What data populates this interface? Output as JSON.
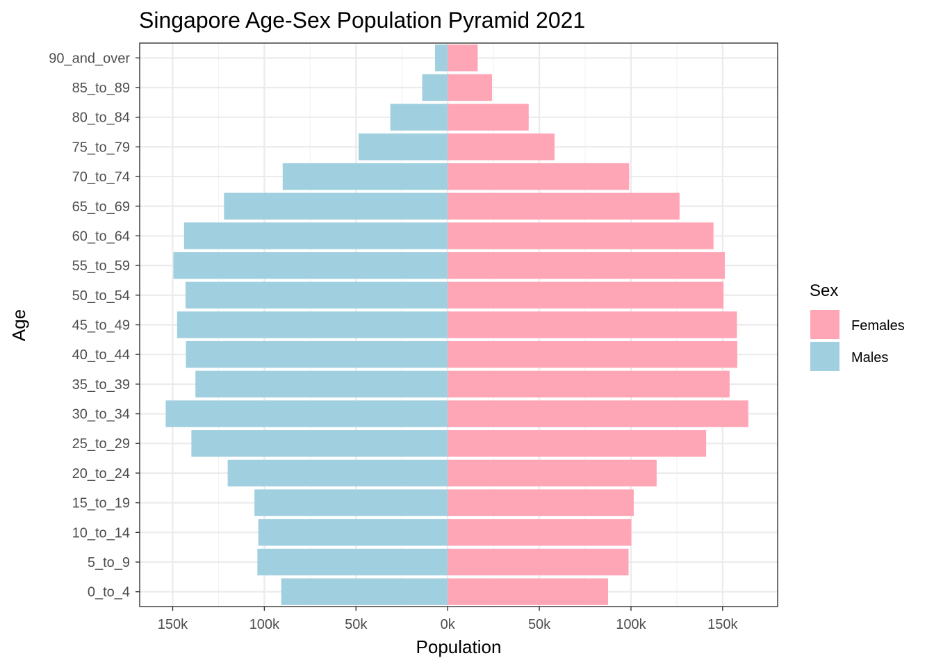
{
  "chart_data": {
    "type": "bar",
    "orientation": "horizontal",
    "title": "Singapore Age-Sex Population Pyramid 2021",
    "xlabel": "Population",
    "ylabel": "Age",
    "categories": [
      "0_to_4",
      "5_to_9",
      "10_to_14",
      "15_to_19",
      "20_to_24",
      "25_to_29",
      "30_to_34",
      "35_to_39",
      "40_to_44",
      "45_to_49",
      "50_to_54",
      "55_to_59",
      "60_to_64",
      "65_to_69",
      "70_to_74",
      "75_to_79",
      "80_to_84",
      "85_to_89",
      "90_and_over"
    ],
    "series": [
      {
        "name": "Females",
        "color": "#FFA6B6",
        "values": [
          87500,
          98700,
          100200,
          101500,
          114000,
          141000,
          164000,
          153800,
          158000,
          157800,
          150500,
          151200,
          145000,
          126500,
          99000,
          58300,
          44200,
          24200,
          16400
        ]
      },
      {
        "name": "Males",
        "color": "#A0D0E0",
        "values": [
          -90800,
          -103800,
          -103300,
          -105400,
          -120000,
          -139800,
          -153800,
          -137600,
          -142800,
          -147600,
          -143000,
          -149600,
          -143800,
          -122000,
          -90000,
          -48600,
          -31300,
          -13900,
          -6900
        ]
      }
    ],
    "xlim": [
      -168000,
      180000
    ],
    "xticks": [
      -150000,
      -100000,
      -50000,
      0,
      50000,
      100000,
      150000
    ],
    "xtick_labels": [
      "150k",
      "100k",
      "50k",
      "0k",
      "50k",
      "100k",
      "150k"
    ],
    "legend": {
      "title": "Sex",
      "position": "right",
      "entries": [
        "Females",
        "Males"
      ]
    },
    "grid": true,
    "panel_border": true
  }
}
